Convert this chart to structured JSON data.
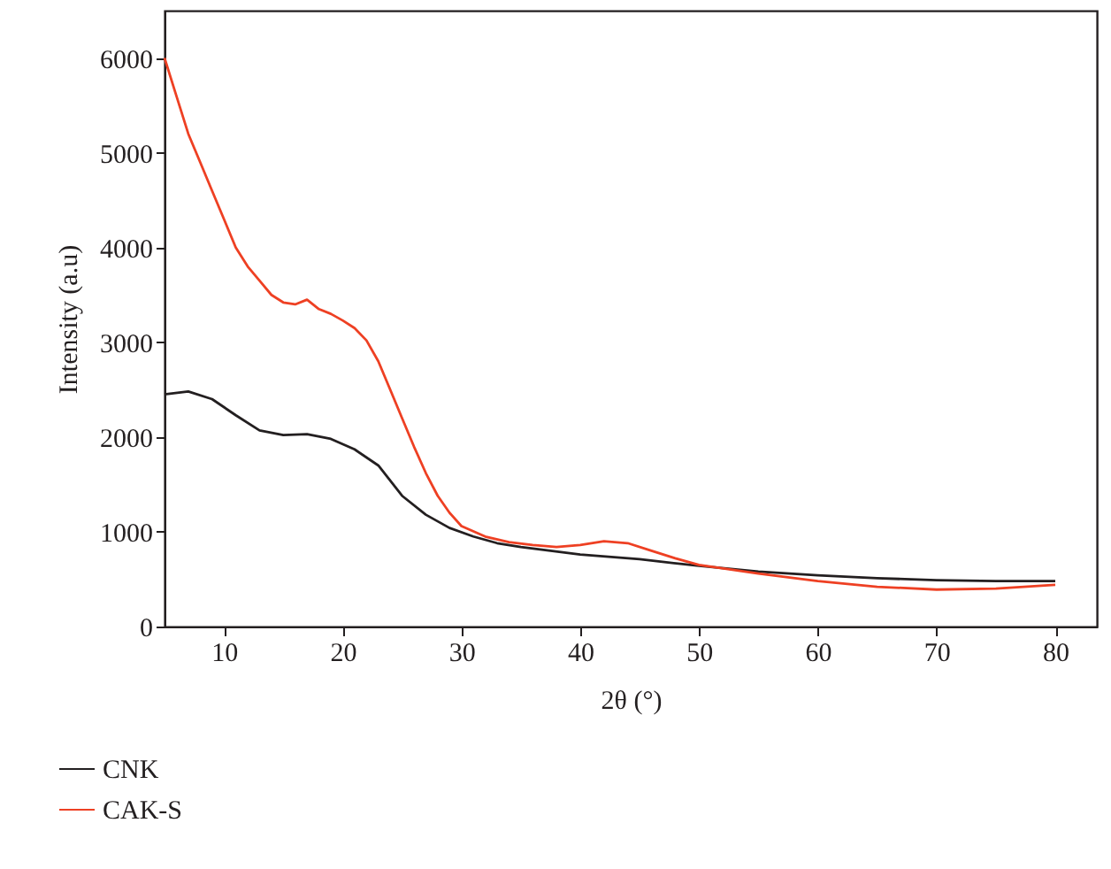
{
  "chart_data": {
    "type": "line",
    "xlabel": "2θ (°)",
    "ylabel": "Intensity (a.u)",
    "xlim": [
      5,
      83.5
    ],
    "ylim": [
      0,
      6500
    ],
    "xticks": [
      10,
      20,
      30,
      40,
      50,
      60,
      70,
      80
    ],
    "yticks": [
      0,
      1000,
      2000,
      3000,
      4000,
      5000,
      6000
    ],
    "grid": false,
    "legend": "bottom left",
    "line_style": "solid",
    "marker": "none",
    "series": [
      {
        "name": "CNK",
        "color": "#231f20",
        "x": [
          5,
          7,
          9,
          11,
          13,
          15,
          17,
          19,
          21,
          23,
          25,
          27,
          29,
          31,
          33,
          35,
          40,
          45,
          50,
          55,
          60,
          65,
          70,
          75,
          80
        ],
        "values": [
          2450,
          2480,
          2400,
          2230,
          2070,
          2020,
          2030,
          1980,
          1870,
          1700,
          1380,
          1180,
          1040,
          950,
          880,
          840,
          760,
          710,
          640,
          580,
          540,
          510,
          490,
          480,
          480
        ]
      },
      {
        "name": "CAK-S",
        "color": "#ee4023",
        "x": [
          5,
          6,
          7,
          8,
          9,
          10,
          11,
          12,
          13,
          14,
          15,
          16,
          17,
          18,
          19,
          20,
          21,
          22,
          23,
          24,
          25,
          26,
          27,
          28,
          29,
          30,
          32,
          34,
          36,
          38,
          40,
          42,
          44,
          46,
          48,
          50,
          55,
          60,
          65,
          70,
          75,
          80
        ],
        "values": [
          6000,
          5600,
          5200,
          4900,
          4600,
          4300,
          4000,
          3800,
          3650,
          3500,
          3420,
          3400,
          3450,
          3350,
          3300,
          3230,
          3150,
          3020,
          2800,
          2500,
          2200,
          1900,
          1620,
          1380,
          1200,
          1060,
          950,
          890,
          860,
          840,
          860,
          900,
          880,
          800,
          720,
          650,
          560,
          480,
          420,
          390,
          400,
          440
        ]
      }
    ]
  }
}
